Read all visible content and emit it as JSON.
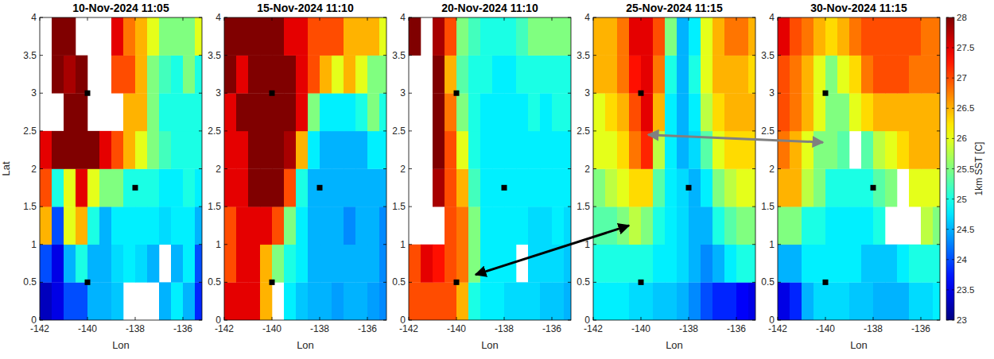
{
  "chart_data": [
    {
      "type": "heatmap",
      "title": "10-Nov-2024 11:05",
      "xlabel": "Lon",
      "ylabel": "Lat",
      "xlim": [
        -142,
        -135.2
      ],
      "ylim": [
        0,
        4
      ],
      "xticks": [
        -142,
        -140,
        -138,
        -136
      ],
      "yticks": [
        0,
        0.5,
        1,
        1.5,
        2,
        2.5,
        3,
        3.5,
        4
      ],
      "cells": {
        "x_edges": [
          -142,
          -141.5,
          -141,
          -140.5,
          -140,
          -139.5,
          -139,
          -138.5,
          -138,
          -137.5,
          -137,
          -136.5,
          -136,
          -135.5,
          -135
        ],
        "y_edges": [
          0,
          0.5,
          1,
          1.5,
          2,
          2.5,
          3,
          3.5,
          4
        ],
        "values": [
          [
            23.3,
            23.5,
            24,
            24,
            24.5,
            24.5,
            24.6,
            null,
            null,
            null,
            24.5,
            24.8,
            24.5,
            23.8
          ],
          [
            24,
            23.5,
            24.5,
            25,
            24.5,
            24.5,
            24.7,
            24.8,
            24.7,
            24.5,
            null,
            24.5,
            24.8,
            24
          ],
          [
            26.5,
            24,
            26,
            26.5,
            25,
            24.5,
            24.8,
            24.8,
            24.8,
            24.8,
            24.7,
            24.8,
            24.8,
            24.5
          ],
          [
            27,
            25,
            26,
            27.5,
            26,
            25.5,
            25.5,
            25,
            25,
            25,
            24.8,
            24.8,
            25,
            24.8
          ],
          [
            27.5,
            28,
            28,
            28,
            28,
            27.5,
            27,
            26.5,
            26,
            25.5,
            25.2,
            25,
            25,
            25
          ],
          [
            null,
            null,
            28,
            28,
            null,
            null,
            null,
            26.5,
            26.5,
            25.5,
            25,
            25,
            25,
            25
          ],
          [
            null,
            28,
            27.8,
            28,
            null,
            null,
            27,
            27,
            26.5,
            25.5,
            25.2,
            25,
            25.5,
            25
          ],
          [
            null,
            28,
            28,
            null,
            null,
            null,
            27.5,
            26.8,
            26.5,
            26,
            25.5,
            25.5,
            25.5,
            26
          ]
        ]
      },
      "series": [
        {
          "type": "scatter",
          "marker": "square",
          "color": "#000000",
          "x": [
            -140,
            -138,
            -140
          ],
          "values": [
            3,
            1.75,
            0.5
          ]
        }
      ]
    },
    {
      "type": "heatmap",
      "title": "15-Nov-2024 11:10",
      "xlabel": "Lon",
      "xlim": [
        -142,
        -135.2
      ],
      "ylim": [
        0,
        4
      ],
      "xticks": [
        -142,
        -140,
        -138,
        -136
      ],
      "yticks": [
        0,
        0.5,
        1,
        1.5,
        2,
        2.5,
        3,
        3.5,
        4
      ],
      "cells": {
        "x_edges": [
          -142,
          -141.5,
          -141,
          -140.5,
          -140,
          -139.5,
          -139,
          -138.5,
          -138,
          -137.5,
          -137,
          -136.5,
          -136,
          -135.5,
          -135
        ],
        "y_edges": [
          0,
          0.5,
          1,
          1.5,
          2,
          2.5,
          3,
          3.5,
          4
        ],
        "values": [
          [
            27.5,
            27.5,
            27.5,
            26.5,
            null,
            24.8,
            24.6,
            24.5,
            24.5,
            24.4,
            24.5,
            24.5,
            24.4,
            24.3
          ],
          [
            27,
            27.5,
            27.5,
            26.5,
            25.5,
            25,
            24.8,
            24.5,
            24.5,
            24.5,
            24.5,
            24.5,
            24.5,
            24.3
          ],
          [
            27,
            27.5,
            27.5,
            27.5,
            27,
            25.5,
            24.8,
            24.5,
            24.5,
            24.5,
            24.3,
            24.5,
            24.5,
            24.3
          ],
          [
            27.5,
            27.5,
            28,
            28,
            28,
            27,
            25,
            24.5,
            24.5,
            24.5,
            24.5,
            24.5,
            24.5,
            24.5
          ],
          [
            27.5,
            27.5,
            28,
            28,
            28,
            27.8,
            26.5,
            24.8,
            24.5,
            24.5,
            24.5,
            24.5,
            24.8,
            24.8
          ],
          [
            27.5,
            28,
            28,
            28,
            28,
            28,
            27.5,
            25.5,
            24.8,
            24.8,
            24.8,
            25,
            25.5,
            25
          ],
          [
            28,
            27.5,
            28,
            28,
            28,
            28,
            27.5,
            27,
            26.5,
            26,
            26.5,
            26,
            25.5,
            25.5
          ],
          [
            28,
            28,
            28,
            28,
            28,
            27.5,
            27.5,
            27,
            27,
            27,
            26.5,
            26.5,
            26.5,
            26
          ]
        ]
      },
      "series": [
        {
          "type": "scatter",
          "marker": "square",
          "color": "#000000",
          "x": [
            -140,
            -138,
            -140
          ],
          "values": [
            3,
            1.75,
            0.5
          ]
        }
      ]
    },
    {
      "type": "heatmap",
      "title": "20-Nov-2024 11:10",
      "xlabel": "Lon",
      "xlim": [
        -142,
        -135.2
      ],
      "ylim": [
        0,
        4
      ],
      "xticks": [
        -142,
        -140,
        -138,
        -136
      ],
      "yticks": [
        0,
        0.5,
        1,
        1.5,
        2,
        2.5,
        3,
        3.5,
        4
      ],
      "cells": {
        "x_edges": [
          -142,
          -141.5,
          -141,
          -140.5,
          -140,
          -139.5,
          -139,
          -138.5,
          -138,
          -137.5,
          -137,
          -136.5,
          -136,
          -135.5,
          -135
        ],
        "y_edges": [
          0,
          0.5,
          1,
          1.5,
          2,
          2.5,
          3,
          3.5,
          4
        ],
        "values": [
          [
            27,
            27,
            27,
            27,
            26.5,
            25,
            24.8,
            24.8,
            24.7,
            24.7,
            24.7,
            24.6,
            24.6,
            24.5
          ],
          [
            27,
            27.5,
            27.3,
            27,
            26.8,
            25.5,
            24.8,
            24.8,
            24.8,
            null,
            24.7,
            24.7,
            24.7,
            24.6
          ],
          [
            null,
            null,
            null,
            27,
            26.8,
            25.5,
            24.8,
            24.8,
            24.8,
            24.8,
            24.7,
            24.7,
            24.8,
            24.7
          ],
          [
            null,
            null,
            27.8,
            27,
            26.5,
            25.2,
            24.8,
            24.8,
            24.8,
            24.8,
            24.8,
            24.8,
            24.8,
            24.8
          ],
          [
            null,
            null,
            28,
            27,
            26,
            25,
            24.8,
            24.8,
            24.8,
            24.8,
            24.8,
            24.8,
            24.8,
            24.8
          ],
          [
            null,
            null,
            28,
            26.8,
            25.5,
            25,
            24.8,
            24.8,
            24.8,
            24.8,
            25,
            24.8,
            25,
            25
          ],
          [
            null,
            null,
            28,
            26.5,
            25.3,
            25,
            25,
            24.8,
            24.8,
            25,
            25,
            25,
            25,
            25
          ],
          [
            28,
            null,
            27.8,
            27,
            25.5,
            25.2,
            25,
            25,
            25,
            25.2,
            25.5,
            25.5,
            25.5,
            25.5
          ]
        ]
      },
      "series": [
        {
          "type": "scatter",
          "marker": "square",
          "color": "#000000",
          "x": [
            -140,
            -138,
            -140
          ],
          "values": [
            3,
            1.75,
            0.5
          ]
        }
      ]
    },
    {
      "type": "heatmap",
      "title": "25-Nov-2024 11:15",
      "xlabel": "Lon",
      "xlim": [
        -142,
        -135.2
      ],
      "ylim": [
        0,
        4
      ],
      "xticks": [
        -142,
        -140,
        -138,
        -136
      ],
      "yticks": [
        0,
        0.5,
        1,
        1.5,
        2,
        2.5,
        3,
        3.5,
        4
      ],
      "cells": {
        "x_edges": [
          -142,
          -141.5,
          -141,
          -140.5,
          -140,
          -139.5,
          -139,
          -138.5,
          -138,
          -137.5,
          -137,
          -136.5,
          -136,
          -135.5,
          -135
        ],
        "y_edges": [
          0,
          0.5,
          1,
          1.5,
          2,
          2.5,
          3,
          3.5,
          4
        ],
        "values": [
          [
            24.8,
            24.8,
            24.8,
            24.7,
            24.7,
            24.6,
            24.6,
            24.5,
            24.3,
            24,
            23.8,
            23.8,
            23.6,
            23.5
          ],
          [
            25,
            25,
            25,
            25,
            25,
            24.8,
            24.8,
            24.7,
            24.5,
            24.3,
            24.5,
            24.8,
            25,
            25
          ],
          [
            25.3,
            25.3,
            25.5,
            25.8,
            25.5,
            25,
            24.8,
            24.7,
            24.5,
            24.5,
            25,
            25.3,
            25.5,
            25.5
          ],
          [
            25.5,
            25.8,
            26,
            26.3,
            26.3,
            25.3,
            24.8,
            24.7,
            24.5,
            24.8,
            25.5,
            25.8,
            26,
            26
          ],
          [
            26,
            26,
            26.3,
            26.8,
            27.2,
            25.8,
            24.8,
            24.5,
            24.7,
            25.3,
            26,
            26.3,
            26.3,
            26.3
          ],
          [
            26,
            26.3,
            26.5,
            27,
            27.5,
            26.5,
            24.8,
            24.5,
            24.8,
            25.8,
            26.3,
            26.5,
            26.5,
            26.5
          ],
          [
            26.5,
            26.5,
            26.8,
            27.3,
            27.5,
            26.8,
            25,
            24.5,
            25,
            26,
            26.5,
            26.5,
            26.5,
            26.3
          ],
          [
            26.5,
            26.5,
            26.8,
            27.5,
            27.5,
            27,
            25.5,
            24.5,
            24.8,
            26,
            26.5,
            26.8,
            26.8,
            26.5
          ]
        ]
      },
      "series": [
        {
          "type": "scatter",
          "marker": "square",
          "color": "#000000",
          "x": [
            -140,
            -138,
            -140
          ],
          "values": [
            3,
            1.75,
            0.5
          ]
        }
      ]
    },
    {
      "type": "heatmap",
      "title": "30-Nov-2024 11:15",
      "xlabel": "Lon",
      "xlim": [
        -142,
        -135.2
      ],
      "ylim": [
        0,
        4
      ],
      "xticks": [
        -142,
        -140,
        -138,
        -136
      ],
      "yticks": [
        0,
        0.5,
        1,
        1.5,
        2,
        2.5,
        3,
        3.5,
        4
      ],
      "cells": {
        "x_edges": [
          -142,
          -141.5,
          -141,
          -140.5,
          -140,
          -139.5,
          -139,
          -138.5,
          -138,
          -137.5,
          -137,
          -136.5,
          -136,
          -135.5,
          -135
        ],
        "y_edges": [
          0,
          0.5,
          1,
          1.5,
          2,
          2.5,
          3,
          3.5,
          4
        ],
        "values": [
          [
            23.5,
            23.8,
            24.5,
            24.7,
            24.7,
            24.7,
            24.6,
            24.6,
            24.5,
            24.5,
            24.5,
            24.7,
            24.7,
            24.8
          ],
          [
            24.5,
            24.5,
            24.8,
            24.8,
            24.8,
            24.8,
            24.8,
            24.6,
            24.6,
            24.6,
            24.8,
            25,
            25,
            25
          ],
          [
            25.5,
            25.5,
            25,
            25,
            24.8,
            24.8,
            24.8,
            24.8,
            25,
            null,
            null,
            null,
            25.8,
            25.5
          ],
          [
            26.5,
            26.5,
            25.8,
            25.5,
            25,
            25,
            25,
            25,
            25.3,
            25.5,
            null,
            26,
            26,
            26
          ],
          [
            26.8,
            26.5,
            26,
            25.5,
            25.5,
            25.3,
            null,
            25.3,
            25.8,
            26,
            26.3,
            26.5,
            26.5,
            26.5
          ],
          [
            27,
            26.8,
            26.5,
            26,
            25.5,
            25.5,
            26,
            26.3,
            26.5,
            26.5,
            26.5,
            26.5,
            26.5,
            26.5
          ],
          [
            27,
            26.8,
            26.5,
            26,
            25.5,
            26,
            26.3,
            26.8,
            27,
            27,
            27,
            26.8,
            26.8,
            26.8
          ],
          [
            27.5,
            27,
            26.8,
            26.5,
            26.3,
            26.5,
            26.8,
            27,
            27,
            27,
            27,
            27,
            26.8,
            26.8
          ]
        ]
      },
      "series": [
        {
          "type": "scatter",
          "marker": "square",
          "color": "#000000",
          "x": [
            -140,
            -138,
            -140
          ],
          "values": [
            3,
            1.75,
            0.5
          ]
        }
      ]
    }
  ],
  "colorbar": {
    "label": "1km SST [C]",
    "range": [
      23,
      28
    ],
    "ticks": [
      23,
      23.5,
      24,
      24.5,
      25,
      25.5,
      26,
      26.5,
      27,
      27.5,
      28
    ]
  },
  "arrows": [
    {
      "from": {
        "chart": 2,
        "x": -139.2,
        "y": 0.6
      },
      "to": {
        "chart": 3,
        "x": -140.5,
        "y": 1.25
      },
      "color": "#000000"
    },
    {
      "from": {
        "chart": 3,
        "x": -139.7,
        "y": 2.45
      },
      "to": {
        "chart": 4,
        "x": -140.1,
        "y": 2.35
      },
      "color": "#808080"
    }
  ]
}
